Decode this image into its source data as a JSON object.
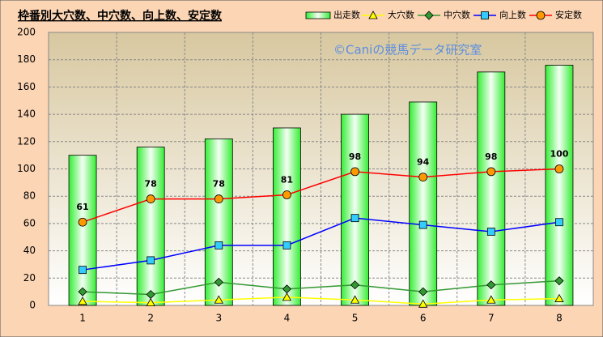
{
  "chart_data": {
    "type": "bar",
    "title": "枠番別大穴数、中穴数、向上数、安定数",
    "watermark": "©Caniの競馬データ研究室",
    "categories": [
      "1",
      "2",
      "3",
      "4",
      "5",
      "6",
      "7",
      "8"
    ],
    "series": [
      {
        "name": "出走数",
        "type": "bar",
        "color": "#33ff33",
        "values": [
          110,
          116,
          122,
          130,
          140,
          149,
          171,
          176
        ]
      },
      {
        "name": "大穴数",
        "type": "line",
        "marker": "triangle",
        "color": "#ffff00",
        "values": [
          3,
          2,
          4,
          6,
          4,
          1,
          4,
          5
        ]
      },
      {
        "name": "中穴数",
        "type": "line",
        "marker": "diamond",
        "color": "#339933",
        "values": [
          10,
          8,
          17,
          12,
          15,
          10,
          15,
          18
        ]
      },
      {
        "name": "向上数",
        "type": "line",
        "marker": "square",
        "color": "#0000ff",
        "values": [
          26,
          33,
          44,
          44,
          64,
          59,
          54,
          61
        ]
      },
      {
        "name": "安定数",
        "type": "line",
        "marker": "circle",
        "color": "#ff0000",
        "values": [
          61,
          78,
          78,
          81,
          98,
          94,
          98,
          100
        ],
        "show_labels": true
      }
    ],
    "ylim": [
      0,
      200
    ],
    "yticks": [
      0,
      20,
      40,
      60,
      80,
      100,
      120,
      140,
      160,
      180,
      200
    ],
    "grid": true
  }
}
